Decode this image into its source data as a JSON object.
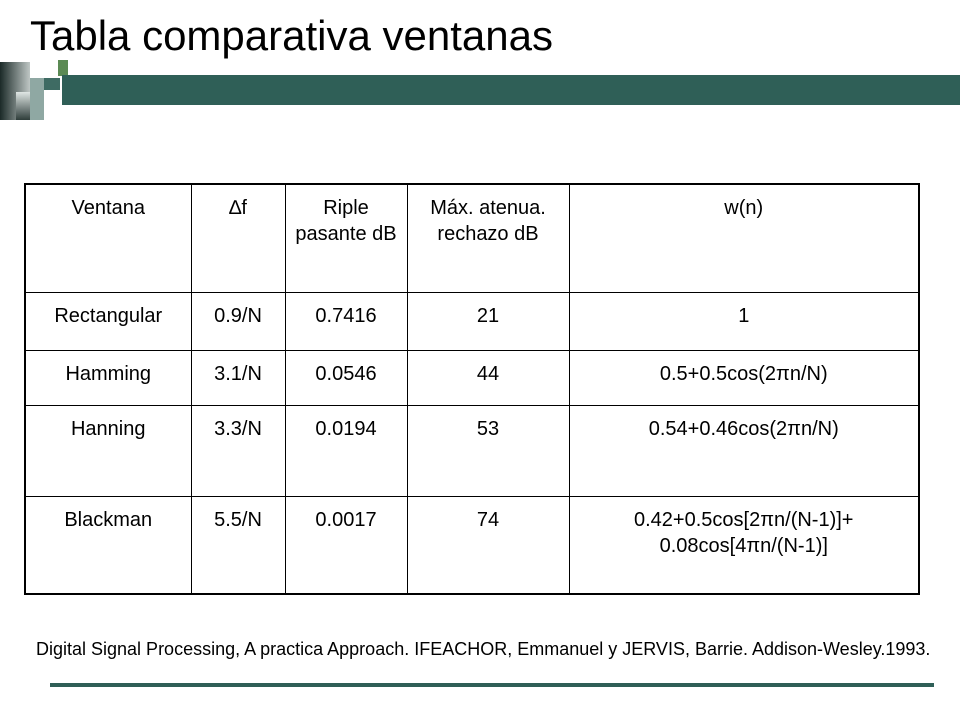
{
  "slide": {
    "title": "Tabla comparativa ventanas",
    "footer": "Digital Signal Processing, A practica Approach. IFEACHOR, Emmanuel y JERVIS, Barrie. Addison-Wesley.1993."
  },
  "table": {
    "headers": [
      "Ventana",
      "∆f",
      "Riple pasante dB",
      "Máx. atenua. rechazo dB",
      "w(n)"
    ],
    "rows": [
      [
        "Rectangular",
        "0.9/N",
        "0.7416",
        "21",
        "1"
      ],
      [
        "Hamming",
        "3.1/N",
        "0.0546",
        "44",
        "0.5+0.5cos(2πn/N)"
      ],
      [
        "Hanning",
        "3.3/N",
        "0.0194",
        "53",
        "0.54+0.46cos(2πn/N)"
      ],
      [
        "Blackman",
        "5.5/N",
        "0.0017",
        "74",
        "0.42+0.5cos[2πn/(N-1)]+ 0.08cos[4πn/(N-1)]"
      ]
    ]
  },
  "colors": {
    "accent": "#2f5f57"
  }
}
